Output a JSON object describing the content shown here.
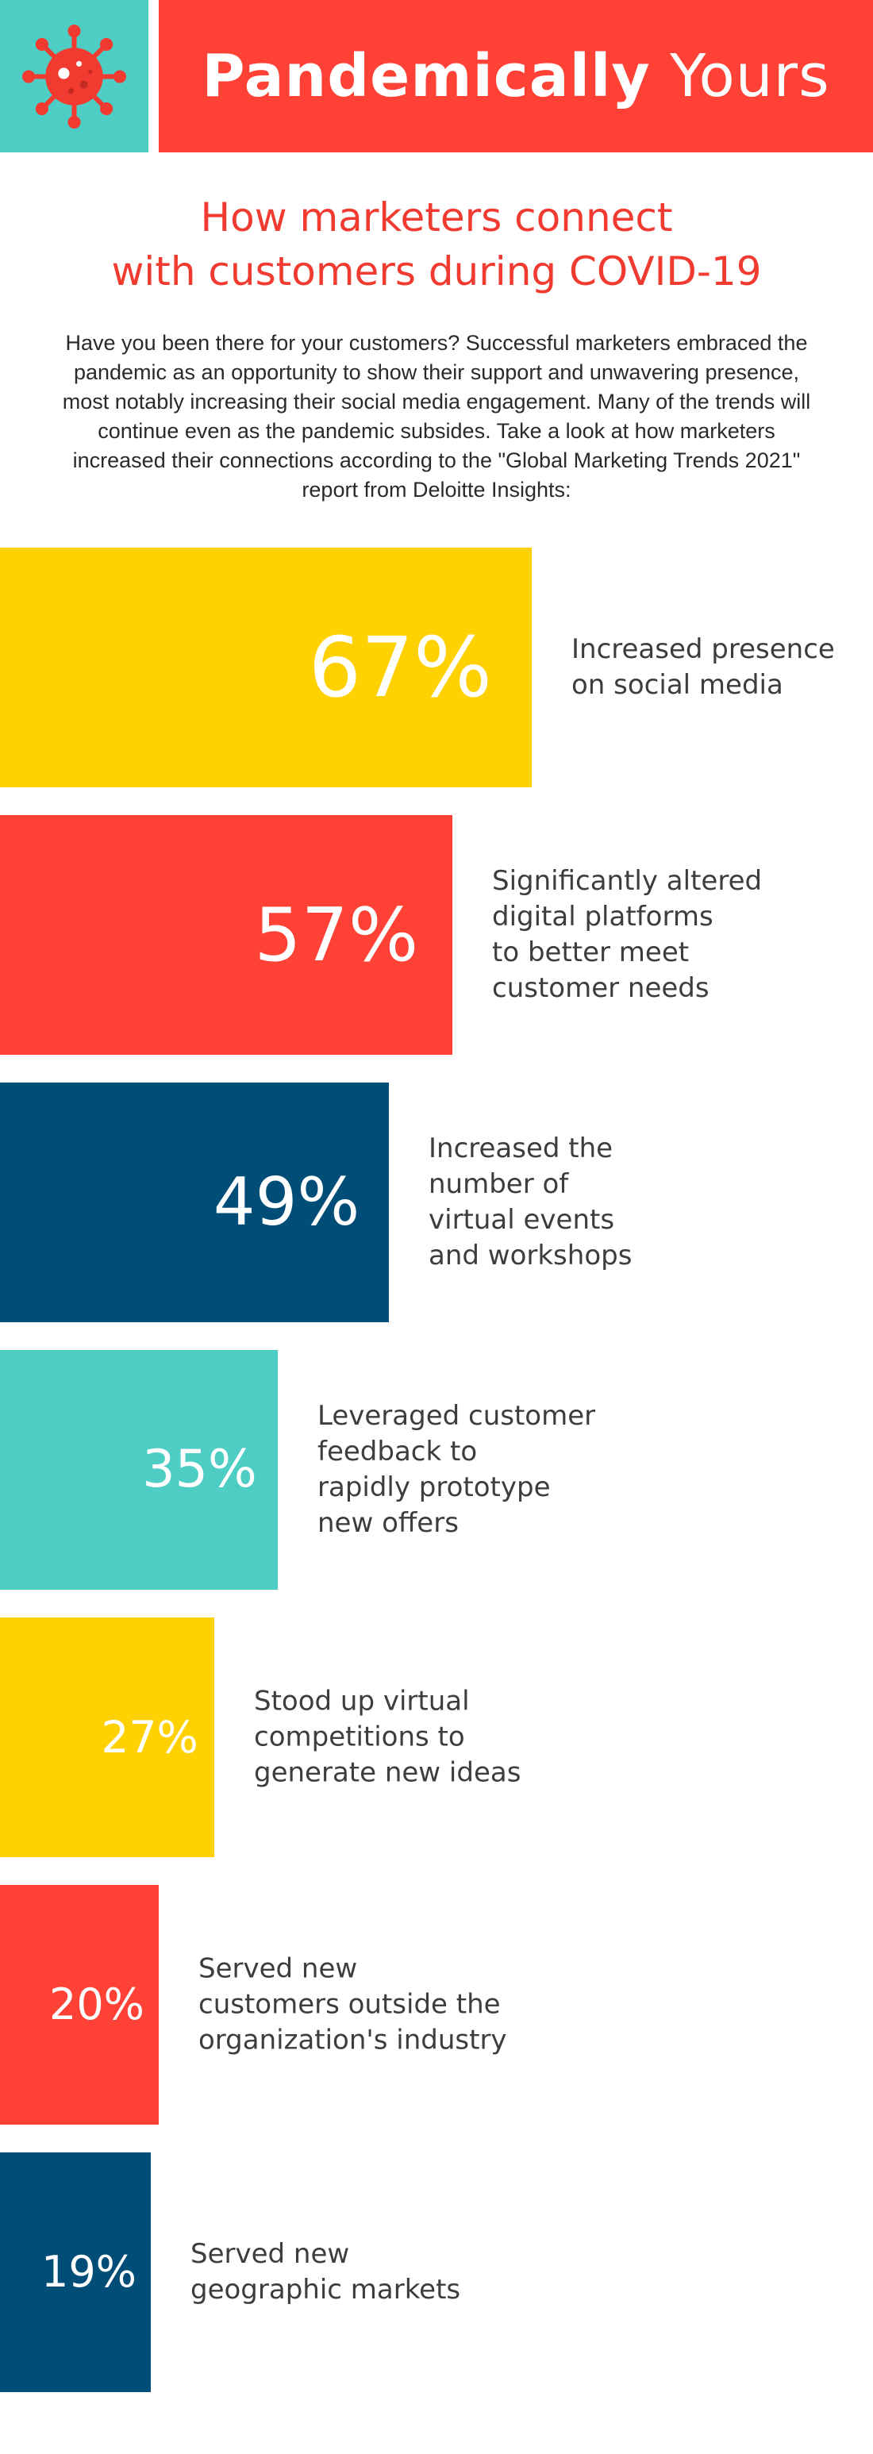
{
  "header": {
    "title_bold": "Pandemically",
    "title_light": "Yours",
    "icon": "virus-icon",
    "icon_box_color": "#4ecdc4",
    "title_box_color": "#ff4136"
  },
  "subtitle": {
    "line1": "How marketers connect",
    "line2": "with customers during COVID-19"
  },
  "intro": {
    "text": "Have you been there for your customers? Successful marketers embraced the pandemic as an opportunity to show their support and unwavering presence, most notably increasing their social media engagement. Many of the trends will continue even as the pandemic subsides. Take a look at how marketers increased their connections according to the \"Global Marketing Trends 2021\" report from Deloitte Insights:"
  },
  "chart_data": {
    "type": "bar",
    "orientation": "horizontal",
    "categories": [
      [
        "Increased presence",
        "on social media"
      ],
      [
        "Significantly altered",
        "digital platforms",
        "to better meet",
        "customer needs"
      ],
      [
        "Increased the",
        "number of",
        "virtual events",
        "and workshops"
      ],
      [
        "Leveraged customer",
        "feedback to",
        "rapidly prototype",
        "new offers"
      ],
      [
        "Stood up virtual",
        "competitions to",
        "generate new ideas"
      ],
      [
        "Served new",
        "customers outside the",
        "organization's industry"
      ],
      [
        "Served new",
        "geographic markets"
      ]
    ],
    "values": [
      67,
      57,
      49,
      35,
      27,
      20,
      19
    ],
    "value_labels": [
      "67%",
      "57%",
      "49%",
      "35%",
      "27%",
      "20%",
      "19%"
    ],
    "colors": [
      "#ffd100",
      "#ff4136",
      "#004d77",
      "#4ecdc4",
      "#ffd100",
      "#ff4136",
      "#004d77"
    ],
    "unit": "%",
    "xlim": [
      0,
      100
    ],
    "grid": false,
    "legend": "none"
  }
}
